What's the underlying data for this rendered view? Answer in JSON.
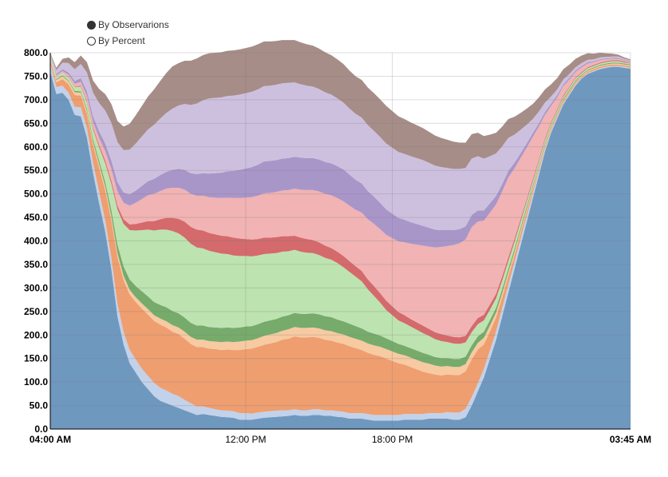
{
  "legend": {
    "by_observations_label": "By Observarions",
    "by_percent_label": "By Percent",
    "selected": "by_observations"
  },
  "chart_data": {
    "type": "area",
    "stacked": true,
    "x": [
      0,
      1,
      2,
      3,
      4,
      5,
      6,
      7,
      8,
      9,
      10,
      11,
      12,
      13,
      14,
      15,
      16,
      17,
      18,
      19,
      20,
      21,
      22,
      23,
      24,
      25,
      26,
      27,
      28,
      29,
      30,
      31,
      32,
      33,
      34,
      35,
      36,
      37,
      38,
      39,
      40,
      41,
      42,
      43,
      44,
      45,
      46,
      47,
      48,
      49,
      50,
      51,
      52,
      53,
      54,
      55,
      56,
      57,
      58,
      59,
      60,
      61,
      62,
      63,
      64,
      65,
      66,
      67,
      68,
      69,
      70,
      71,
      72,
      73,
      74,
      75,
      76,
      77,
      78,
      79,
      80,
      81,
      82,
      83,
      84,
      85,
      86,
      87,
      88,
      89,
      90,
      91,
      92,
      93,
      94,
      95
    ],
    "x_ticks": [
      {
        "x": 0,
        "label": "04:00 AM",
        "bold": true
      },
      {
        "x": 32,
        "label": "12:00 PM",
        "bold": false
      },
      {
        "x": 56,
        "label": "18:00 PM",
        "bold": false
      },
      {
        "x": 95,
        "label": "03:45 AM",
        "bold": true
      }
    ],
    "ylim": [
      0,
      800
    ],
    "y_ticks": [
      "0.0",
      "50.0",
      "100.0",
      "150.0",
      "200.0",
      "250.0",
      "300.0",
      "350.0",
      "400.0",
      "450.0",
      "500.0",
      "550.0",
      "600.0",
      "650.0",
      "700.0",
      "750.0",
      "800.0"
    ],
    "grid": true,
    "colors": [
      "#6f98bf",
      "#c2d2ea",
      "#ef9e70",
      "#f7caa1",
      "#76ab6c",
      "#bde3b0",
      "#d46a6c",
      "#f1b3b3",
      "#a996c9",
      "#cdc0de",
      "#a68d88"
    ],
    "series": [
      {
        "values": [
          760,
          712,
          715,
          700,
          668,
          665,
          620,
          545,
          480,
          420,
          340,
          240,
          180,
          140,
          120,
          100,
          85,
          70,
          60,
          55,
          50,
          45,
          40,
          35,
          30,
          32,
          30,
          28,
          26,
          25,
          24,
          20,
          20,
          20,
          22,
          24,
          25,
          26,
          27,
          28,
          30,
          28,
          28,
          30,
          30,
          28,
          28,
          26,
          25,
          22,
          22,
          22,
          20,
          18,
          18,
          18,
          18,
          18,
          20,
          20,
          20,
          20,
          22,
          22,
          22,
          22,
          20,
          20,
          25,
          50,
          80,
          110,
          150,
          190,
          240,
          290,
          340,
          390,
          440,
          490,
          540,
          590,
          630,
          660,
          690,
          710,
          730,
          745,
          755,
          760,
          765,
          768,
          770,
          770,
          768,
          766
        ]
      },
      {
        "values": [
          18,
          15,
          15,
          15,
          17,
          19,
          20,
          21,
          24,
          23,
          24,
          26,
          27,
          28,
          28,
          28,
          28,
          28,
          28,
          27,
          25,
          25,
          22,
          20,
          18,
          16,
          15,
          14,
          14,
          14,
          14,
          14,
          14,
          13,
          13,
          13,
          13,
          13,
          13,
          12,
          12,
          12,
          12,
          12,
          12,
          12,
          12,
          12,
          12,
          12,
          12,
          12,
          12,
          12,
          12,
          12,
          12,
          12,
          12,
          12,
          12,
          12,
          12,
          12,
          12,
          14,
          15,
          15,
          18,
          18,
          17,
          18,
          18,
          18,
          18,
          17,
          15,
          14,
          12,
          10,
          8,
          6,
          4,
          4,
          3,
          3,
          3,
          2,
          2,
          2,
          2,
          2,
          2,
          2,
          2,
          2
        ]
      },
      {
        "values": [
          5,
          10,
          14,
          18,
          25,
          25,
          30,
          38,
          52,
          64,
          80,
          100,
          110,
          118,
          122,
          128,
          130,
          132,
          134,
          134,
          132,
          132,
          130,
          126,
          126,
          126,
          126,
          128,
          128,
          130,
          130,
          134,
          136,
          138,
          140,
          142,
          144,
          146,
          150,
          152,
          155,
          155,
          155,
          154,
          152,
          150,
          148,
          146,
          144,
          142,
          138,
          134,
          130,
          128,
          125,
          120,
          115,
          110,
          105,
          100,
          95,
          90,
          85,
          82,
          80,
          80,
          80,
          80,
          80,
          80,
          72,
          52,
          40,
          30,
          22,
          18,
          14,
          12,
          10,
          8,
          6,
          5,
          4,
          4,
          4,
          4,
          3,
          3,
          3,
          3,
          3,
          3,
          3,
          3,
          3,
          3
        ]
      },
      {
        "values": [
          3,
          5,
          6,
          6,
          6,
          6,
          6,
          6,
          7,
          8,
          8,
          8,
          9,
          10,
          10,
          11,
          12,
          12,
          13,
          13,
          14,
          14,
          15,
          15,
          16,
          16,
          16,
          16,
          17,
          17,
          17,
          18,
          18,
          18,
          18,
          19,
          19,
          19,
          19,
          20,
          20,
          20,
          20,
          20,
          20,
          20,
          20,
          20,
          20,
          20,
          20,
          20,
          20,
          20,
          20,
          20,
          20,
          20,
          20,
          20,
          20,
          20,
          20,
          19,
          19,
          18,
          17,
          17,
          15,
          15,
          14,
          14,
          12,
          10,
          9,
          8,
          7,
          6,
          5,
          5,
          4,
          3,
          3,
          2,
          2,
          2,
          2,
          2,
          2,
          2,
          2,
          2,
          2,
          2,
          2,
          2
        ]
      },
      {
        "values": [
          1,
          2,
          2,
          2,
          3,
          3,
          5,
          7,
          8,
          10,
          14,
          18,
          20,
          22,
          24,
          26,
          27,
          28,
          29,
          30,
          30,
          30,
          30,
          30,
          30,
          30,
          30,
          30,
          30,
          30,
          30,
          30,
          30,
          30,
          30,
          30,
          30,
          30,
          30,
          30,
          30,
          30,
          30,
          30,
          30,
          30,
          30,
          29,
          28,
          28,
          27,
          26,
          25,
          25,
          24,
          23,
          22,
          21,
          20,
          20,
          20,
          20,
          19,
          18,
          18,
          17,
          17,
          17,
          16,
          15,
          14,
          13,
          12,
          10,
          9,
          8,
          7,
          6,
          6,
          5,
          4,
          4,
          3,
          3,
          3,
          3,
          3,
          2,
          2,
          2,
          2,
          2,
          2,
          2,
          2,
          2
        ]
      },
      {
        "values": [
          4,
          5,
          5,
          6,
          8,
          10,
          14,
          20,
          28,
          40,
          55,
          75,
          90,
          105,
          118,
          130,
          142,
          152,
          160,
          165,
          170,
          170,
          170,
          168,
          166,
          164,
          162,
          160,
          158,
          156,
          154,
          152,
          150,
          148,
          146,
          144,
          142,
          140,
          138,
          136,
          134,
          132,
          130,
          128,
          126,
          124,
          122,
          120,
          115,
          110,
          105,
          100,
          90,
          80,
          70,
          60,
          55,
          50,
          48,
          46,
          44,
          42,
          40,
          38,
          36,
          34,
          33,
          32,
          30,
          28,
          26,
          24,
          22,
          20,
          18,
          16,
          14,
          12,
          10,
          8,
          7,
          6,
          5,
          4,
          4,
          4,
          4,
          3,
          3,
          3,
          3,
          3,
          3,
          3,
          2,
          2
        ]
      },
      {
        "values": [
          0,
          0,
          0,
          1,
          1,
          2,
          3,
          4,
          5,
          6,
          7,
          8,
          10,
          12,
          14,
          16,
          18,
          20,
          22,
          25,
          28,
          31,
          34,
          36,
          38,
          38,
          38,
          38,
          38,
          38,
          38,
          37,
          36,
          36,
          35,
          35,
          34,
          34,
          33,
          32,
          30,
          30,
          29,
          28,
          27,
          26,
          25,
          24,
          24,
          23,
          22,
          22,
          21,
          21,
          20,
          20,
          19,
          18,
          17,
          16,
          16,
          16,
          15,
          15,
          15,
          14,
          14,
          14,
          14,
          13,
          13,
          12,
          11,
          10,
          9,
          8,
          7,
          6,
          5,
          5,
          4,
          4,
          3,
          3,
          3,
          2,
          2,
          2,
          2,
          2,
          2,
          2,
          2,
          2,
          2,
          1
        ]
      },
      {
        "values": [
          2,
          3,
          4,
          5,
          6,
          8,
          10,
          12,
          15,
          20,
          25,
          30,
          35,
          40,
          45,
          50,
          55,
          58,
          60,
          62,
          64,
          66,
          68,
          70,
          72,
          74,
          76,
          78,
          80,
          82,
          84,
          86,
          88,
          90,
          92,
          94,
          95,
          96,
          97,
          98,
          100,
          102,
          104,
          106,
          108,
          110,
          112,
          114,
          116,
          118,
          120,
          124,
          128,
          132,
          136,
          140,
          145,
          150,
          155,
          160,
          165,
          170,
          175,
          180,
          185,
          190,
          195,
          200,
          205,
          210,
          205,
          200,
          195,
          190,
          180,
          170,
          150,
          130,
          110,
          90,
          70,
          50,
          35,
          25,
          20,
          15,
          12,
          10,
          8,
          6,
          5,
          4,
          3,
          3,
          2,
          2
        ]
      },
      {
        "values": [
          2,
          3,
          4,
          5,
          6,
          8,
          10,
          12,
          14,
          16,
          18,
          20,
          22,
          24,
          26,
          28,
          30,
          32,
          34,
          36,
          38,
          40,
          42,
          44,
          46,
          48,
          50,
          52,
          54,
          56,
          58,
          60,
          62,
          64,
          66,
          68,
          68,
          68,
          68,
          68,
          68,
          68,
          68,
          68,
          68,
          68,
          68,
          68,
          68,
          66,
          64,
          62,
          60,
          58,
          56,
          54,
          52,
          50,
          48,
          46,
          44,
          42,
          40,
          38,
          36,
          34,
          32,
          30,
          28,
          26,
          24,
          22,
          20,
          18,
          16,
          14,
          12,
          10,
          9,
          8,
          7,
          6,
          5,
          5,
          4,
          4,
          3,
          3,
          3,
          2,
          2,
          2,
          2,
          2,
          2,
          2
        ]
      },
      {
        "values": [
          3,
          8,
          14,
          20,
          25,
          30,
          40,
          50,
          60,
          70,
          80,
          85,
          90,
          95,
          100,
          105,
          110,
          115,
          120,
          125,
          130,
          135,
          140,
          145,
          150,
          155,
          160,
          160,
          160,
          160,
          160,
          160,
          160,
          160,
          160,
          160,
          160,
          160,
          160,
          160,
          158,
          156,
          154,
          152,
          150,
          148,
          146,
          144,
          142,
          140,
          140,
          140,
          140,
          140,
          140,
          140,
          140,
          140,
          140,
          140,
          140,
          140,
          138,
          136,
          134,
          132,
          130,
          128,
          124,
          120,
          115,
          110,
          100,
          90,
          80,
          70,
          60,
          50,
          40,
          30,
          25,
          20,
          15,
          12,
          10,
          8,
          7,
          6,
          5,
          4,
          4,
          3,
          3,
          3,
          2,
          2
        ]
      },
      {
        "values": [
          2,
          5,
          8,
          12,
          15,
          18,
          22,
          26,
          30,
          35,
          40,
          45,
          50,
          55,
          60,
          65,
          70,
          75,
          80,
          85,
          90,
          90,
          92,
          94,
          96,
          96,
          96,
          96,
          96,
          96,
          96,
          96,
          96,
          96,
          96,
          95,
          94,
          93,
          92,
          91,
          90,
          89,
          88,
          87,
          86,
          85,
          84,
          83,
          82,
          81,
          80,
          80,
          80,
          80,
          80,
          80,
          78,
          76,
          74,
          72,
          70,
          68,
          66,
          64,
          62,
          60,
          58,
          56,
          54,
          52,
          50,
          48,
          46,
          44,
          42,
          40,
          38,
          36,
          34,
          32,
          30,
          28,
          26,
          24,
          22,
          20,
          18,
          16,
          14,
          12,
          10,
          8,
          6,
          4,
          3,
          2
        ]
      }
    ]
  }
}
